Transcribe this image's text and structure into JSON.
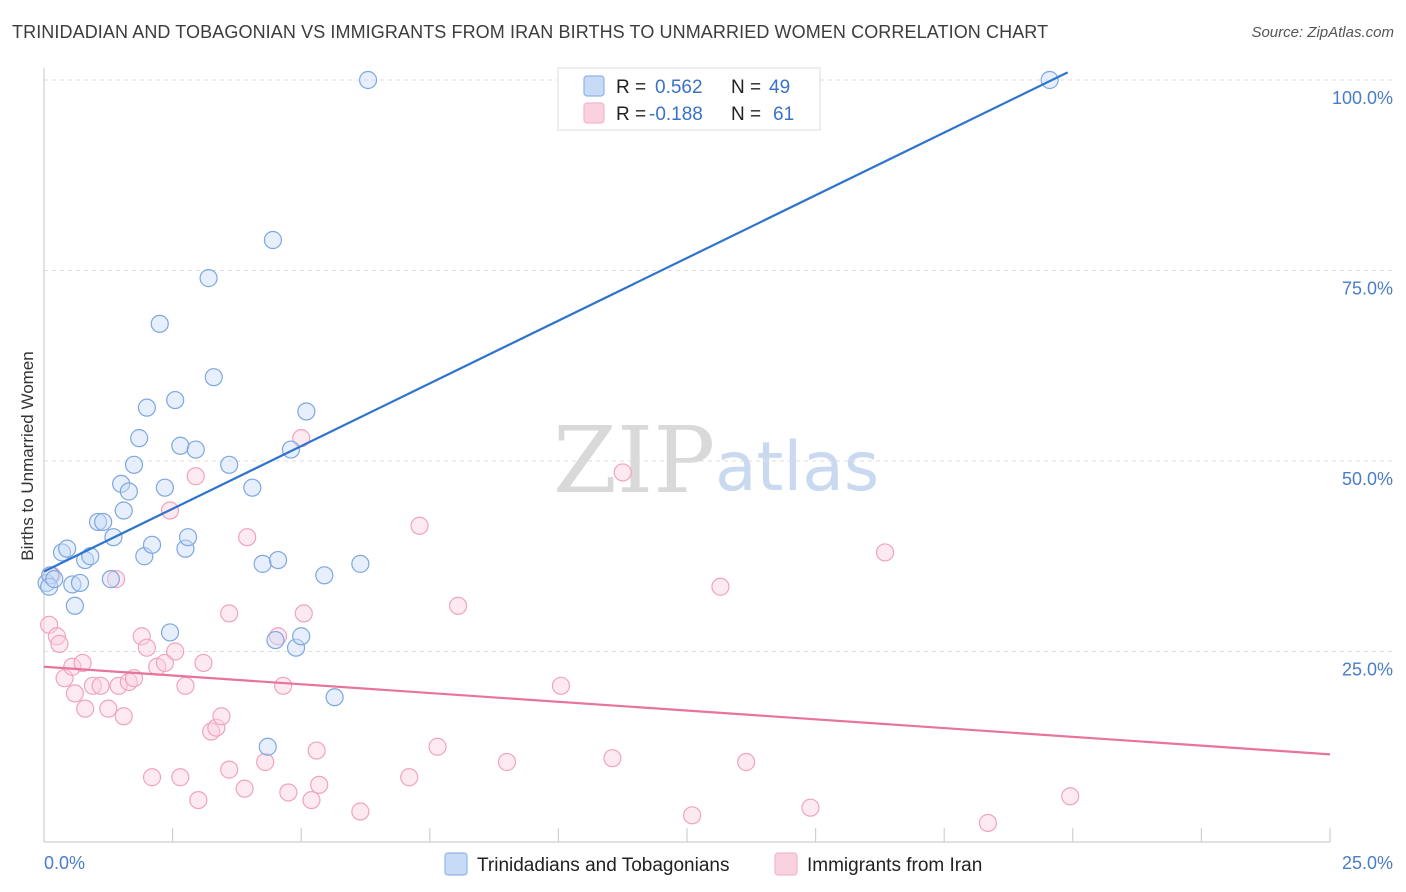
{
  "header": {
    "title": "TRINIDADIAN AND TOBAGONIAN VS IMMIGRANTS FROM IRAN BIRTHS TO UNMARRIED WOMEN CORRELATION CHART",
    "source": "Source: ZipAtlas.com"
  },
  "watermark": {
    "zip": "ZIP",
    "atlas": "atlas"
  },
  "legend": {
    "r_label": "R =",
    "n_label": "N =",
    "entries": [
      {
        "r": "0.562",
        "n": "49"
      },
      {
        "r": "-0.188",
        "n": "61"
      }
    ]
  },
  "chart_data": {
    "type": "scatter",
    "title": "TRINIDADIAN AND TOBAGONIAN VS IMMIGRANTS FROM IRAN BIRTHS TO UNMARRIED WOMEN CORRELATION CHART",
    "xlabel": "",
    "ylabel": "Births to Unmarried Women",
    "xlim": [
      0,
      25
    ],
    "ylim": [
      0,
      100
    ],
    "x_tick_labels": [
      "0.0%",
      "25.0%"
    ],
    "y_ticks": [
      25,
      50,
      75,
      100
    ],
    "y_tick_labels": [
      "25.0%",
      "50.0%",
      "75.0%",
      "100.0%"
    ],
    "grid": true,
    "legend_position": "top-center",
    "series": [
      {
        "name": "Trinidadians and Tobagonians",
        "color": "#8fb3e8",
        "line_color": "#2f74cc",
        "trend": {
          "x": [
            0.0,
            19.9
          ],
          "y": [
            35.5,
            101.0
          ]
        },
        "points": [
          [
            0.05,
            34.0
          ],
          [
            0.12,
            35.0
          ],
          [
            0.35,
            38.0
          ],
          [
            0.45,
            38.5
          ],
          [
            0.55,
            33.8
          ],
          [
            0.6,
            31.0
          ],
          [
            0.7,
            34.0
          ],
          [
            0.8,
            37.0
          ],
          [
            0.9,
            37.5
          ],
          [
            1.05,
            42.0
          ],
          [
            1.15,
            42.0
          ],
          [
            1.3,
            34.5
          ],
          [
            1.35,
            40.0
          ],
          [
            1.5,
            47.0
          ],
          [
            1.55,
            43.5
          ],
          [
            1.65,
            46.0
          ],
          [
            1.75,
            49.5
          ],
          [
            1.85,
            53.0
          ],
          [
            1.95,
            37.5
          ],
          [
            2.0,
            57.0
          ],
          [
            2.1,
            39.0
          ],
          [
            2.25,
            68.0
          ],
          [
            2.35,
            46.5
          ],
          [
            2.45,
            27.5
          ],
          [
            2.55,
            58.0
          ],
          [
            2.65,
            52.0
          ],
          [
            2.75,
            38.5
          ],
          [
            2.8,
            40.0
          ],
          [
            2.95,
            51.5
          ],
          [
            3.2,
            74.0
          ],
          [
            3.3,
            61.0
          ],
          [
            3.6,
            49.5
          ],
          [
            4.05,
            46.5
          ],
          [
            4.25,
            36.5
          ],
          [
            4.35,
            12.5
          ],
          [
            4.45,
            79.0
          ],
          [
            4.5,
            26.5
          ],
          [
            4.55,
            37.0
          ],
          [
            4.8,
            51.5
          ],
          [
            4.9,
            25.5
          ],
          [
            5.0,
            27.0
          ],
          [
            5.1,
            56.5
          ],
          [
            5.45,
            35.0
          ],
          [
            5.65,
            19.0
          ],
          [
            6.15,
            36.5
          ],
          [
            6.3,
            100.0
          ],
          [
            19.55,
            100.0
          ],
          [
            0.1,
            33.5
          ],
          [
            0.2,
            34.5
          ]
        ]
      },
      {
        "name": "Immigrants from Iran",
        "color": "#f4b6cb",
        "line_color": "#e8739c",
        "trend": {
          "x": [
            0.0,
            25.0
          ],
          "y": [
            23.0,
            11.5
          ]
        },
        "points": [
          [
            0.1,
            28.5
          ],
          [
            0.25,
            27.0
          ],
          [
            0.15,
            35.0
          ],
          [
            0.4,
            21.5
          ],
          [
            0.55,
            23.0
          ],
          [
            0.6,
            19.5
          ],
          [
            0.75,
            23.5
          ],
          [
            0.8,
            17.5
          ],
          [
            0.95,
            20.5
          ],
          [
            1.1,
            20.5
          ],
          [
            1.25,
            17.5
          ],
          [
            1.4,
            34.5
          ],
          [
            1.45,
            20.5
          ],
          [
            1.55,
            16.5
          ],
          [
            1.65,
            21.0
          ],
          [
            1.75,
            21.5
          ],
          [
            1.9,
            27.0
          ],
          [
            2.0,
            25.5
          ],
          [
            2.1,
            8.5
          ],
          [
            2.2,
            23.0
          ],
          [
            2.35,
            23.5
          ],
          [
            2.45,
            43.5
          ],
          [
            2.55,
            25.0
          ],
          [
            2.65,
            8.5
          ],
          [
            2.75,
            20.5
          ],
          [
            2.95,
            48.0
          ],
          [
            3.0,
            5.5
          ],
          [
            3.1,
            23.5
          ],
          [
            3.25,
            14.5
          ],
          [
            3.35,
            15.0
          ],
          [
            3.45,
            16.5
          ],
          [
            3.6,
            30.0
          ],
          [
            3.6,
            9.5
          ],
          [
            3.9,
            7.0
          ],
          [
            3.95,
            40.0
          ],
          [
            4.3,
            10.5
          ],
          [
            4.55,
            27.0
          ],
          [
            4.65,
            20.5
          ],
          [
            4.75,
            6.5
          ],
          [
            5.0,
            53.0
          ],
          [
            5.05,
            30.0
          ],
          [
            5.2,
            5.5
          ],
          [
            5.35,
            7.5
          ],
          [
            5.3,
            12.0
          ],
          [
            6.15,
            4.0
          ],
          [
            7.1,
            8.5
          ],
          [
            7.3,
            41.5
          ],
          [
            7.65,
            12.5
          ],
          [
            8.05,
            31.0
          ],
          [
            9.0,
            10.5
          ],
          [
            10.05,
            20.5
          ],
          [
            11.05,
            11.0
          ],
          [
            11.25,
            48.5
          ],
          [
            12.6,
            3.5
          ],
          [
            13.15,
            33.5
          ],
          [
            13.65,
            10.5
          ],
          [
            14.9,
            4.5
          ],
          [
            16.35,
            38.0
          ],
          [
            18.35,
            2.5
          ],
          [
            19.95,
            6.0
          ],
          [
            0.3,
            26.0
          ]
        ]
      }
    ]
  },
  "bottom_legend": [
    {
      "label": "Trinidadians and Tobagonians"
    },
    {
      "label": "Immigrants from Iran"
    }
  ]
}
